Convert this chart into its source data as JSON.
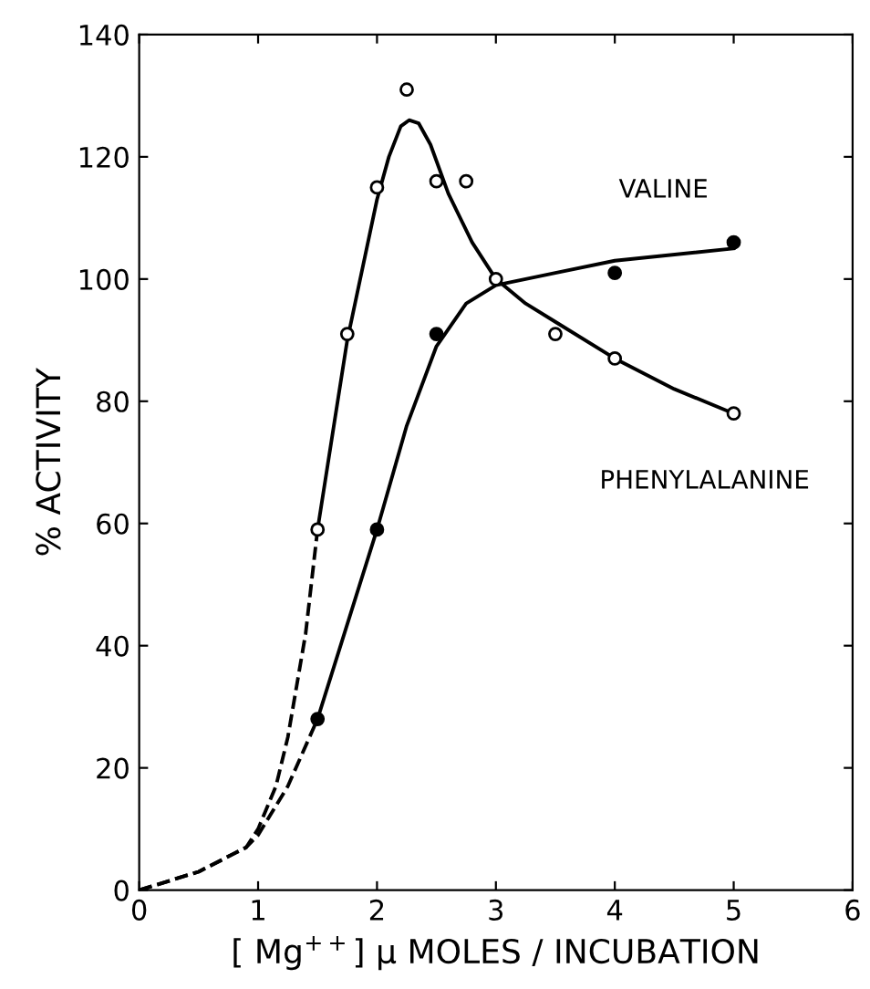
{
  "chart_data": {
    "type": "line",
    "xlabel": "[ Mg$^{++}$] μ MOLES / INCUBATION",
    "ylabel": "% ACTIVITY",
    "xlim": [
      0,
      6
    ],
    "ylim": [
      0,
      140
    ],
    "xticks": [
      0,
      1,
      2,
      3,
      4,
      5,
      6
    ],
    "yticks": [
      0,
      20,
      40,
      60,
      80,
      100,
      120,
      140
    ],
    "grid": false,
    "legend": false,
    "series": [
      {
        "type": "scatter",
        "marker": "circle",
        "color": "#ffffff",
        "x": [
          1.5,
          1.75,
          2,
          2.25,
          2.5,
          2.75,
          3,
          3.5,
          4,
          5
        ],
        "values": [
          59,
          91,
          115,
          131,
          116,
          116,
          100,
          91,
          87,
          78
        ]
      },
      {
        "type": "scatter",
        "marker": "circle",
        "color": "#000000",
        "x": [
          1.5,
          2,
          2.5,
          4,
          5
        ],
        "values": [
          28,
          59,
          91,
          101,
          106
        ]
      },
      {
        "line_style": "solid",
        "name": "PHENYLALANINE",
        "color": "#000000",
        "x": [
          1.5,
          1.75,
          2,
          2.1,
          2.2,
          2.27,
          2.35,
          2.45,
          2.6,
          2.8,
          3,
          3.25,
          3.5,
          4,
          4.5,
          5
        ],
        "values": [
          59,
          90,
          113,
          120,
          125,
          126,
          125.5,
          122,
          114,
          106,
          100,
          96,
          93,
          87,
          82,
          78
        ]
      },
      {
        "line_style": "dashed",
        "color": "#000000",
        "x": [
          0,
          0.5,
          0.9,
          1,
          1.15,
          1.25,
          1.4,
          1.5
        ],
        "values": [
          0,
          3,
          7,
          10,
          17,
          25,
          42,
          59
        ]
      },
      {
        "line_style": "solid",
        "name": "VALINE",
        "color": "#000000",
        "x": [
          1.5,
          2,
          2.25,
          2.5,
          2.75,
          3,
          3.5,
          4,
          5
        ],
        "values": [
          28,
          59,
          76,
          89,
          96,
          99,
          101,
          103,
          105
        ]
      },
      {
        "line_style": "dashed",
        "color": "#000000",
        "x": [
          0,
          0.5,
          0.9,
          1,
          1.25,
          1.5
        ],
        "values": [
          0,
          3,
          7,
          9,
          17,
          28
        ]
      }
    ]
  }
}
